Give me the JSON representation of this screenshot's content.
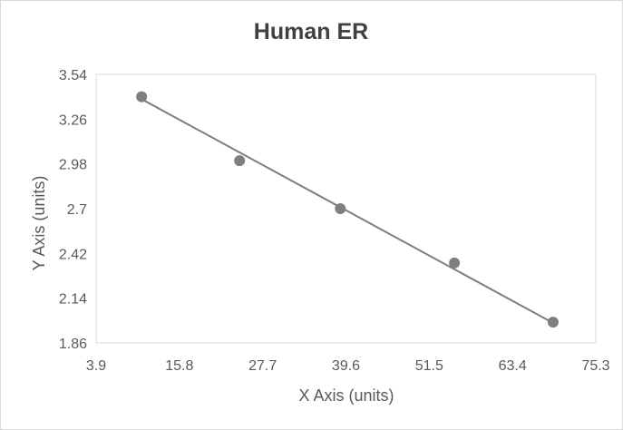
{
  "chart_data": {
    "type": "scatter",
    "title": "Human ER",
    "xlabel": "X Axis (units)",
    "ylabel": "Y Axis (units)",
    "xlim": [
      3.9,
      75.3
    ],
    "ylim": [
      1.86,
      3.54
    ],
    "x_ticks": [
      "3.9",
      "15.8",
      "27.7",
      "39.6",
      "51.5",
      "63.4",
      "75.3"
    ],
    "y_ticks": [
      "3.54",
      "3.26",
      "2.98",
      "2.7",
      "2.42",
      "2.14",
      "1.86"
    ],
    "grid": false,
    "legend": "none",
    "series": [
      {
        "points": [
          {
            "x": 10.4,
            "y": 3.4
          },
          {
            "x": 24.4,
            "y": 3.0
          },
          {
            "x": 38.8,
            "y": 2.7
          },
          {
            "x": 55.1,
            "y": 2.36
          },
          {
            "x": 69.2,
            "y": 1.99
          }
        ],
        "trendline": {
          "x_start": 10.4,
          "y_start": 3.385,
          "x_end": 69.2,
          "y_end": 1.985
        }
      }
    ],
    "colors": {
      "marker": "#7f7f7f",
      "trendline": "#7f7f7f",
      "plot_border": "#d9d9d9",
      "text": "#595959",
      "title": "#404040"
    }
  }
}
